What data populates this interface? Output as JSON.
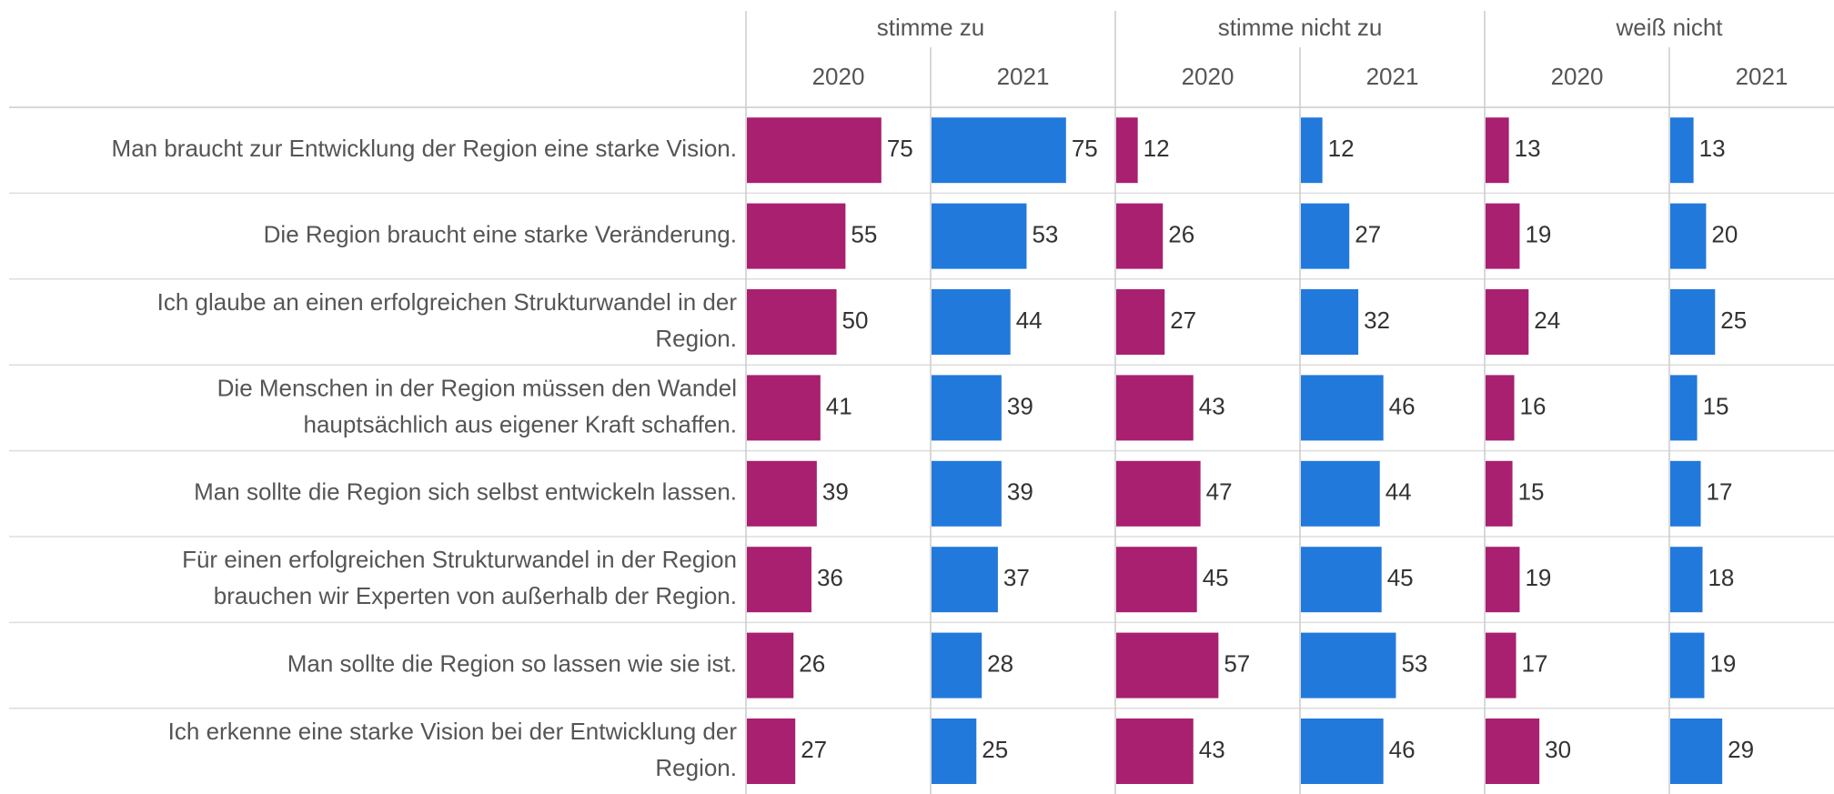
{
  "chart_data": {
    "type": "bar",
    "orientation": "horizontal",
    "categories": [
      [
        "Man braucht zur Entwicklung der Region eine starke Vision."
      ],
      [
        "Die Region braucht eine starke Veränderung."
      ],
      [
        "Ich glaube an einen erfolgreichen Strukturwandel in der",
        "Region."
      ],
      [
        "Die Menschen in der Region müssen den Wandel",
        "hauptsächlich aus eigener Kraft schaffen."
      ],
      [
        "Man sollte die Region sich selbst entwickeln lassen."
      ],
      [
        "Für einen erfolgreichen Strukturwandel in der Region",
        "brauchen wir Experten von außerhalb der Region."
      ],
      [
        "Man sollte die Region so lassen wie sie ist."
      ],
      [
        "Ich erkenne eine starke Vision bei der Entwicklung der",
        "Region."
      ]
    ],
    "groups": [
      {
        "name": "stimme zu",
        "series": [
          {
            "name": "2020",
            "color": "#a8206f",
            "values": [
              75,
              55,
              50,
              41,
              39,
              36,
              26,
              27
            ]
          },
          {
            "name": "2021",
            "color": "#2279dc",
            "values": [
              75,
              53,
              44,
              39,
              39,
              37,
              28,
              25
            ]
          }
        ]
      },
      {
        "name": "stimme nicht zu",
        "series": [
          {
            "name": "2020",
            "color": "#a8206f",
            "values": [
              12,
              26,
              27,
              43,
              47,
              45,
              57,
              43
            ]
          },
          {
            "name": "2021",
            "color": "#2279dc",
            "values": [
              12,
              27,
              32,
              46,
              44,
              45,
              53,
              46
            ]
          }
        ]
      },
      {
        "name": "weiß nicht",
        "series": [
          {
            "name": "2020",
            "color": "#a8206f",
            "values": [
              13,
              19,
              24,
              16,
              15,
              19,
              17,
              30
            ]
          },
          {
            "name": "2021",
            "color": "#2279dc",
            "values": [
              13,
              20,
              25,
              15,
              17,
              18,
              19,
              29
            ]
          }
        ]
      }
    ],
    "xlim": [
      0,
      103
    ]
  }
}
